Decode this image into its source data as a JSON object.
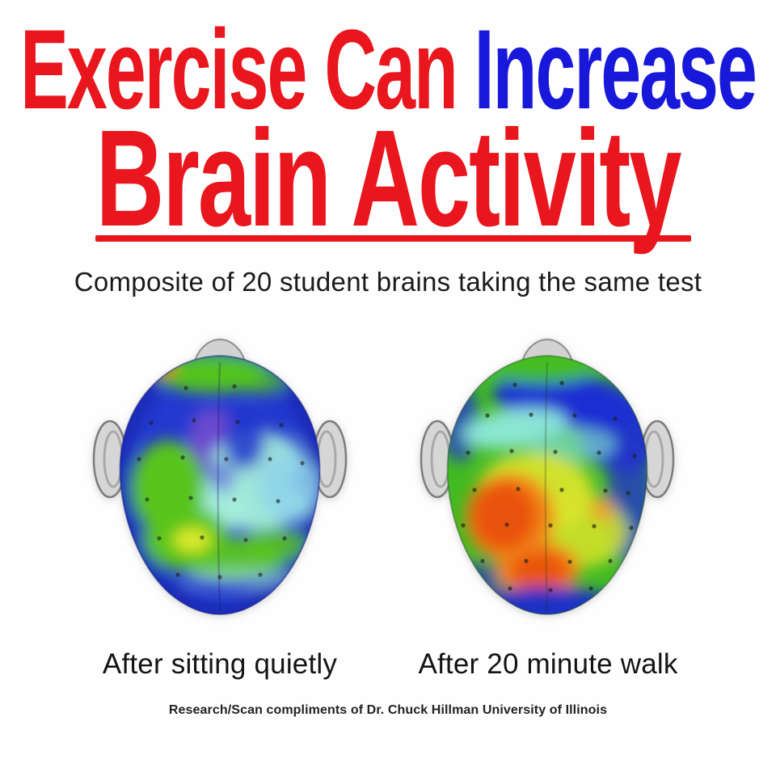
{
  "title": {
    "line1_red": "Exercise Can",
    "line1_blue": "Increase",
    "line2_red": "Brain Activity"
  },
  "subtitle": "Composite of 20 student brains taking the same test",
  "brains": {
    "left": {
      "caption": "After sitting quietly",
      "activity_level": "low",
      "dominant_colors": [
        "#2439cf",
        "#9fe7d9",
        "#59c51b"
      ]
    },
    "right": {
      "caption": "After 20 minute walk",
      "activity_level": "high",
      "dominant_colors": [
        "#42ba22",
        "#d8e42b",
        "#f28419",
        "#e9520d"
      ]
    }
  },
  "credit": "Research/Scan compliments of Dr. Chuck Hillman University of Illinois",
  "colors": {
    "title_red": "#e9161d",
    "title_blue": "#1818da",
    "heat_low_blue": "#2439cf",
    "heat_cyan": "#9fe7d9",
    "heat_green": "#59c51b",
    "heat_yellow": "#e3ec2d",
    "heat_orange": "#f28419",
    "heat_red": "#e9520d",
    "head_gray": "#d6d6d6",
    "text_black": "#1b1b1b"
  }
}
